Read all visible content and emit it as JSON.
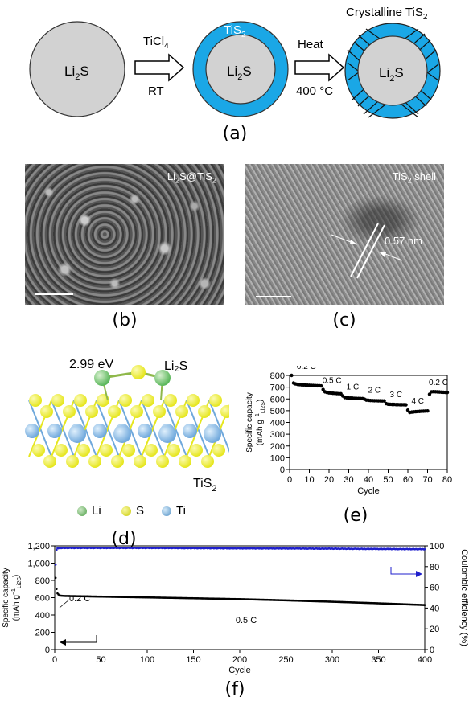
{
  "panel_a": {
    "core_label": "Li",
    "core_sub": "2",
    "core_suffix": "S",
    "step1_top_main": "TiCl",
    "step1_top_sub": "4",
    "step1_bottom": "RT",
    "shell_label_main": "TiS",
    "shell_label_sub": "2",
    "step2_top": "Heat",
    "step2_bottom": "400 °C",
    "crystalline_main": "Crystalline TiS",
    "crystalline_sub": "2",
    "label": "(a)"
  },
  "panel_b": {
    "overlay_main": "Li",
    "overlay_sub1": "2",
    "overlay_mid": "S@TiS",
    "overlay_sub2": "2",
    "label": "(b)"
  },
  "panel_c": {
    "overlay_main": "TiS",
    "overlay_sub": "2",
    "overlay_suffix": " shell",
    "spacing": "0.57 nm",
    "label": "(c)"
  },
  "panel_d": {
    "energy": "2.99 eV",
    "adsorbate": "Li₂S",
    "substrate_main": "TiS",
    "substrate_sub": "2",
    "legend": [
      "Li",
      "S",
      "Ti"
    ],
    "label": "(d)",
    "colors": {
      "Li": "#5cb85c",
      "S": "#e6e61e",
      "Ti": "#6fa8dc"
    }
  },
  "panel_e": {
    "label": "(e)",
    "ylabel_line1": "Specific capacity",
    "ylabel_line2": "(mAh g",
    "ylabel_sup": "−1",
    "ylabel_sub": "Li2S",
    "ylabel_close": ")",
    "xlabel": "Cycle",
    "yticks": [
      "0",
      "100",
      "200",
      "300",
      "400",
      "500",
      "600",
      "700",
      "800"
    ],
    "xticks": [
      "0",
      "10",
      "20",
      "30",
      "40",
      "50",
      "60",
      "70",
      "80"
    ],
    "rates": [
      "0.2 C",
      "0.5 C",
      "1 C",
      "2 C",
      "3 C",
      "4 C",
      "0.2 C"
    ]
  },
  "panel_f": {
    "label": "(f)",
    "ylabel_left_line1": "Specific capacity",
    "ylabel_left_line2": "(mAh g",
    "ylabel_left_sup": "−1",
    "ylabel_left_sub": "Li2S",
    "ylabel_left_close": ")",
    "ylabel_right": "Coulombic efficiency (%)",
    "xlabel": "Cycle",
    "yticks_left": [
      "0",
      "200",
      "400",
      "600",
      "800",
      "1,000",
      "1,200"
    ],
    "yticks_right": [
      "0",
      "20",
      "40",
      "60",
      "80",
      "100"
    ],
    "xticks": [
      "0",
      "50",
      "100",
      "150",
      "200",
      "250",
      "300",
      "350",
      "400"
    ],
    "rate_initial": "0.2 C",
    "rate_main": "0.5 C"
  },
  "chart_data": [
    {
      "type": "scatter",
      "xlabel": "Cycle",
      "ylabel": "Specific capacity (mAh g−1 Li2S)",
      "xlim": [
        0,
        80
      ],
      "ylim": [
        0,
        800
      ],
      "segments": [
        {
          "rate": "0.2 C",
          "x": [
            1,
            2,
            3,
            4,
            5,
            6,
            7,
            8,
            9,
            10,
            11,
            12,
            13,
            14,
            15,
            16
          ],
          "y": [
            800,
            735,
            728,
            724,
            722,
            720,
            719,
            718,
            717,
            716,
            715,
            714,
            713,
            712,
            712,
            711
          ]
        },
        {
          "rate": "0.5 C",
          "x": [
            17,
            18,
            19,
            20,
            21,
            22,
            23,
            24,
            25,
            26
          ],
          "y": [
            680,
            660,
            655,
            652,
            650,
            648,
            647,
            646,
            645,
            644
          ]
        },
        {
          "rate": "1 C",
          "x": [
            27,
            28,
            29,
            30,
            31,
            32,
            33,
            34,
            35,
            36,
            37
          ],
          "y": [
            625,
            612,
            610,
            608,
            607,
            606,
            605,
            604,
            604,
            603,
            603
          ]
        },
        {
          "rate": "2 C",
          "x": [
            38,
            39,
            40,
            41,
            42,
            43,
            44,
            45,
            46,
            47,
            48
          ],
          "y": [
            598,
            590,
            588,
            587,
            586,
            585,
            585,
            584,
            584,
            583,
            583
          ]
        },
        {
          "rate": "3 C",
          "x": [
            49,
            50,
            51,
            52,
            53,
            54,
            55,
            56,
            57,
            58,
            59
          ],
          "y": [
            560,
            555,
            554,
            553,
            553,
            552,
            552,
            551,
            551,
            551,
            550
          ]
        },
        {
          "rate": "4 C",
          "x": [
            60,
            61,
            62,
            63,
            64,
            65,
            66,
            67,
            68,
            69,
            70
          ],
          "y": [
            505,
            485,
            488,
            490,
            492,
            493,
            494,
            495,
            496,
            497,
            498
          ]
        },
        {
          "rate": "0.2 C",
          "x": [
            71,
            72,
            73,
            74,
            75,
            76,
            77,
            78,
            79,
            80
          ],
          "y": [
            640,
            660,
            662,
            661,
            660,
            659,
            658,
            657,
            656,
            655
          ]
        }
      ]
    },
    {
      "type": "scatter",
      "xlabel": "Cycle",
      "ylabel": "Specific capacity (mAh g−1 Li2S)",
      "y2label": "Coulombic efficiency (%)",
      "xlim": [
        0,
        400
      ],
      "ylim": [
        0,
        1200
      ],
      "y2lim": [
        0,
        100
      ],
      "series": [
        {
          "axis": "left",
          "color": "#000000",
          "x": [
            1,
            2,
            3,
            5,
            10,
            50,
            100,
            150,
            200,
            250,
            300,
            350,
            400
          ],
          "y": [
            830,
            700,
            650,
            625,
            620,
            612,
            603,
            593,
            583,
            569,
            553,
            535,
            515
          ]
        },
        {
          "axis": "right",
          "color": "#1f1fcc",
          "x": [
            1,
            2,
            3,
            5,
            10,
            50,
            100,
            150,
            200,
            250,
            300,
            350,
            400
          ],
          "y": [
            82,
            96,
            97.5,
            98,
            98,
            98,
            98,
            97.8,
            97.6,
            97.5,
            97.3,
            97,
            96.8
          ]
        }
      ]
    }
  ]
}
